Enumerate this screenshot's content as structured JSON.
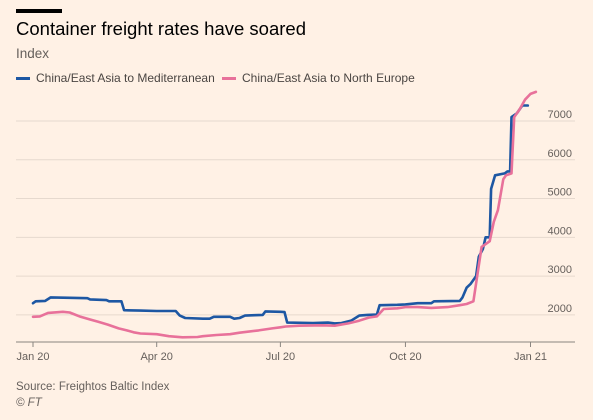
{
  "header": {
    "title": "Container freight rates have soared",
    "subtitle": "Index"
  },
  "footer": {
    "source": "Source: Freightos Baltic Index",
    "credit": "© FT"
  },
  "colors": {
    "background": "#fff1e5",
    "mediterranean": "#1d57a3",
    "north_europe": "#e8719a",
    "grid": "#e6d9ce"
  },
  "chart_data": {
    "type": "line",
    "title": "Container freight rates have soared",
    "ylabel": "Index",
    "ylim": [
      1300,
      7800
    ],
    "yticks": [
      2000,
      3000,
      4000,
      5000,
      6000,
      7000
    ],
    "xlim": [
      "2020-01-01",
      "2021-01-08"
    ],
    "xticks": [
      {
        "date": "2020-01-01",
        "label": "Jan 20"
      },
      {
        "date": "2020-04-01",
        "label": "Apr 20"
      },
      {
        "date": "2020-07-01",
        "label": "Jul 20"
      },
      {
        "date": "2020-10-01",
        "label": "Oct 20"
      },
      {
        "date": "2021-01-01",
        "label": "Jan 21"
      }
    ],
    "legend_position": "top",
    "grid": "horizontal",
    "series": [
      {
        "name": "China/East Asia to Mediterranean",
        "color": "#1d57a3",
        "points": [
          [
            "2020-01-01",
            2300
          ],
          [
            "2020-01-03",
            2350
          ],
          [
            "2020-01-10",
            2360
          ],
          [
            "2020-01-14",
            2450
          ],
          [
            "2020-01-28",
            2440
          ],
          [
            "2020-02-10",
            2430
          ],
          [
            "2020-02-12",
            2400
          ],
          [
            "2020-02-24",
            2380
          ],
          [
            "2020-02-26",
            2350
          ],
          [
            "2020-03-06",
            2350
          ],
          [
            "2020-03-08",
            2120
          ],
          [
            "2020-03-20",
            2110
          ],
          [
            "2020-04-01",
            2100
          ],
          [
            "2020-04-15",
            2100
          ],
          [
            "2020-04-18",
            1980
          ],
          [
            "2020-04-22",
            1920
          ],
          [
            "2020-05-05",
            1900
          ],
          [
            "2020-05-10",
            1900
          ],
          [
            "2020-05-13",
            1950
          ],
          [
            "2020-05-25",
            1950
          ],
          [
            "2020-05-28",
            1900
          ],
          [
            "2020-06-01",
            1920
          ],
          [
            "2020-06-05",
            1980
          ],
          [
            "2020-06-12",
            1990
          ],
          [
            "2020-06-18",
            2000
          ],
          [
            "2020-06-20",
            2090
          ],
          [
            "2020-07-01",
            2080
          ],
          [
            "2020-07-04",
            2070
          ],
          [
            "2020-07-06",
            1800
          ],
          [
            "2020-07-25",
            1790
          ],
          [
            "2020-08-05",
            1800
          ],
          [
            "2020-08-10",
            1780
          ],
          [
            "2020-08-15",
            1790
          ],
          [
            "2020-08-22",
            1850
          ],
          [
            "2020-08-28",
            1980
          ],
          [
            "2020-09-03",
            2000
          ],
          [
            "2020-09-10",
            2010
          ],
          [
            "2020-09-12",
            2250
          ],
          [
            "2020-09-25",
            2260
          ],
          [
            "2020-10-01",
            2270
          ],
          [
            "2020-10-10",
            2300
          ],
          [
            "2020-10-20",
            2300
          ],
          [
            "2020-10-22",
            2350
          ],
          [
            "2020-11-10",
            2360
          ],
          [
            "2020-11-12",
            2450
          ],
          [
            "2020-11-15",
            2700
          ],
          [
            "2020-11-18",
            2800
          ],
          [
            "2020-11-22",
            3000
          ],
          [
            "2020-11-24",
            3500
          ],
          [
            "2020-11-27",
            3700
          ],
          [
            "2020-11-29",
            4000
          ],
          [
            "2020-12-02",
            4000
          ],
          [
            "2020-12-03",
            5250
          ],
          [
            "2020-12-06",
            5600
          ],
          [
            "2020-12-13",
            5650
          ],
          [
            "2020-12-15",
            5700
          ],
          [
            "2020-12-17",
            5700
          ],
          [
            "2020-12-18",
            7100
          ],
          [
            "2020-12-22",
            7200
          ],
          [
            "2020-12-24",
            7300
          ],
          [
            "2020-12-26",
            7400
          ],
          [
            "2020-12-30",
            7400
          ]
        ]
      },
      {
        "name": "China/East Asia to North Europe",
        "color": "#e8719a",
        "points": [
          [
            "2020-01-01",
            1950
          ],
          [
            "2020-01-06",
            1960
          ],
          [
            "2020-01-12",
            2050
          ],
          [
            "2020-01-23",
            2080
          ],
          [
            "2020-01-28",
            2060
          ],
          [
            "2020-02-05",
            1950
          ],
          [
            "2020-02-12",
            1880
          ],
          [
            "2020-02-18",
            1820
          ],
          [
            "2020-02-25",
            1750
          ],
          [
            "2020-03-04",
            1650
          ],
          [
            "2020-03-10",
            1600
          ],
          [
            "2020-03-15",
            1550
          ],
          [
            "2020-03-20",
            1520
          ],
          [
            "2020-04-01",
            1500
          ],
          [
            "2020-04-10",
            1450
          ],
          [
            "2020-04-20",
            1420
          ],
          [
            "2020-05-01",
            1430
          ],
          [
            "2020-05-05",
            1450
          ],
          [
            "2020-05-15",
            1480
          ],
          [
            "2020-05-25",
            1500
          ],
          [
            "2020-06-01",
            1540
          ],
          [
            "2020-06-15",
            1600
          ],
          [
            "2020-06-25",
            1650
          ],
          [
            "2020-07-01",
            1680
          ],
          [
            "2020-07-05",
            1700
          ],
          [
            "2020-07-15",
            1720
          ],
          [
            "2020-08-01",
            1730
          ],
          [
            "2020-08-10",
            1720
          ],
          [
            "2020-08-20",
            1780
          ],
          [
            "2020-08-28",
            1850
          ],
          [
            "2020-09-04",
            1930
          ],
          [
            "2020-09-10",
            1960
          ],
          [
            "2020-09-15",
            2150
          ],
          [
            "2020-09-25",
            2170
          ],
          [
            "2020-10-01",
            2200
          ],
          [
            "2020-10-10",
            2200
          ],
          [
            "2020-10-20",
            2180
          ],
          [
            "2020-11-01",
            2200
          ],
          [
            "2020-11-10",
            2250
          ],
          [
            "2020-11-15",
            2280
          ],
          [
            "2020-11-20",
            2350
          ],
          [
            "2020-11-26",
            3750
          ],
          [
            "2020-11-28",
            3800
          ],
          [
            "2020-12-02",
            3900
          ],
          [
            "2020-12-05",
            4400
          ],
          [
            "2020-12-08",
            4700
          ],
          [
            "2020-12-12",
            5500
          ],
          [
            "2020-12-14",
            5600
          ],
          [
            "2020-12-18",
            5650
          ],
          [
            "2020-12-20",
            7100
          ],
          [
            "2020-12-24",
            7300
          ],
          [
            "2020-12-28",
            7550
          ],
          [
            "2021-01-01",
            7700
          ],
          [
            "2021-01-05",
            7750
          ]
        ]
      }
    ]
  }
}
